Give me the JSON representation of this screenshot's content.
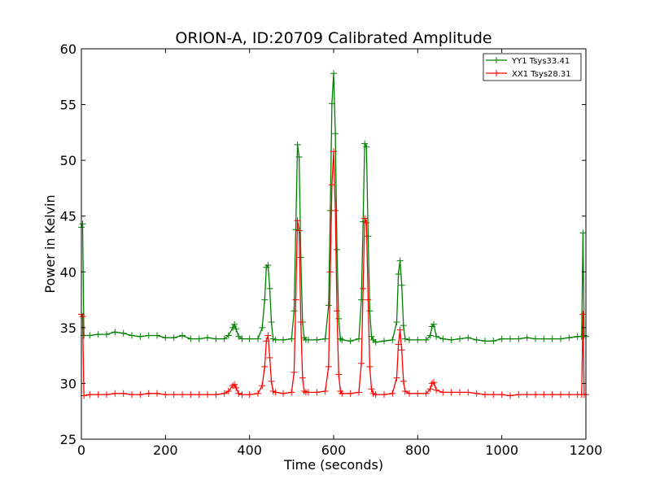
{
  "chart_data": {
    "type": "line",
    "title": "ORION-A, ID:20709 Calibrated Amplitude",
    "xlabel": "Time (seconds)",
    "ylabel": "Power in Kelvin",
    "xlim": [
      0,
      1200
    ],
    "ylim": [
      25,
      60
    ],
    "xticks": [
      0,
      200,
      400,
      600,
      800,
      1000,
      1200
    ],
    "yticks": [
      25,
      30,
      35,
      40,
      45,
      50,
      55,
      60
    ],
    "grid": false,
    "legend_position": "top-right",
    "marker": "plus",
    "series": [
      {
        "name": "YY1 Tsys33.41",
        "color": "#008000",
        "x": [
          0,
          3,
          6,
          20,
          40,
          60,
          80,
          100,
          120,
          140,
          160,
          180,
          200,
          220,
          240,
          260,
          280,
          300,
          320,
          340,
          350,
          360,
          364,
          368,
          374,
          382,
          400,
          420,
          430,
          436,
          440,
          444,
          448,
          452,
          456,
          462,
          480,
          500,
          506,
          510,
          514,
          518,
          522,
          526,
          530,
          534,
          540,
          560,
          580,
          588,
          592,
          596,
          600,
          604,
          608,
          612,
          616,
          620,
          640,
          660,
          666,
          670,
          674,
          678,
          682,
          686,
          690,
          694,
          700,
          720,
          740,
          750,
          754,
          758,
          762,
          766,
          770,
          780,
          800,
          820,
          830,
          834,
          838,
          844,
          860,
          880,
          900,
          920,
          940,
          960,
          980,
          1000,
          1020,
          1040,
          1060,
          1080,
          1100,
          1120,
          1140,
          1160,
          1180,
          1190,
          1193,
          1196,
          1200
        ],
        "y": [
          44.0,
          44.3,
          34.3,
          34.3,
          34.4,
          34.4,
          34.6,
          34.5,
          34.3,
          34.2,
          34.3,
          34.3,
          34.1,
          34.1,
          34.3,
          34.0,
          34.0,
          34.1,
          34.0,
          34.0,
          34.3,
          35.0,
          35.3,
          34.9,
          34.2,
          34.0,
          34.0,
          34.0,
          35.0,
          37.5,
          40.4,
          40.6,
          38.5,
          35.5,
          34.0,
          33.9,
          33.9,
          34.0,
          36.5,
          43.8,
          51.4,
          50.3,
          41.3,
          35.5,
          34.1,
          33.9,
          33.9,
          33.9,
          34.0,
          37.0,
          45.5,
          55.1,
          57.8,
          52.4,
          42.0,
          35.8,
          34.0,
          33.9,
          33.8,
          34.0,
          37.5,
          44.5,
          51.5,
          51.2,
          43.2,
          36.5,
          34.2,
          33.9,
          33.7,
          33.8,
          33.9,
          35.5,
          39.8,
          41.0,
          38.8,
          35.2,
          34.0,
          33.9,
          33.9,
          33.9,
          34.3,
          35.1,
          35.3,
          34.2,
          34.0,
          33.9,
          34.0,
          34.1,
          33.9,
          33.8,
          33.8,
          34.0,
          34.0,
          34.0,
          34.1,
          34.0,
          34.0,
          34.0,
          34.0,
          34.1,
          34.2,
          34.2,
          43.5,
          34.3,
          34.2
        ]
      },
      {
        "name": "XX1 Tsys28.31",
        "color": "#ff0000",
        "x": [
          0,
          3,
          6,
          20,
          40,
          60,
          80,
          100,
          120,
          140,
          160,
          180,
          200,
          220,
          240,
          260,
          280,
          300,
          320,
          340,
          350,
          360,
          364,
          368,
          374,
          382,
          400,
          420,
          430,
          436,
          440,
          444,
          448,
          452,
          456,
          462,
          480,
          500,
          506,
          510,
          514,
          518,
          522,
          526,
          530,
          534,
          540,
          560,
          580,
          588,
          592,
          596,
          600,
          604,
          608,
          612,
          616,
          620,
          640,
          660,
          666,
          670,
          674,
          678,
          682,
          686,
          690,
          694,
          700,
          720,
          740,
          750,
          754,
          758,
          762,
          766,
          770,
          780,
          800,
          820,
          830,
          834,
          838,
          844,
          860,
          880,
          900,
          920,
          940,
          960,
          980,
          1000,
          1020,
          1040,
          1060,
          1080,
          1100,
          1120,
          1140,
          1160,
          1180,
          1190,
          1193,
          1196,
          1200
        ],
        "y": [
          36.2,
          36.0,
          28.9,
          29.0,
          29.0,
          29.0,
          29.1,
          29.1,
          29.0,
          29.0,
          29.1,
          29.1,
          29.0,
          29.0,
          29.0,
          29.0,
          29.0,
          29.0,
          29.0,
          29.1,
          29.3,
          29.8,
          29.9,
          29.6,
          29.1,
          29.0,
          29.0,
          29.1,
          29.8,
          31.5,
          33.8,
          34.3,
          32.3,
          30.2,
          29.3,
          29.2,
          29.1,
          29.2,
          31.0,
          37.5,
          44.6,
          43.7,
          35.5,
          30.5,
          29.3,
          29.2,
          29.2,
          29.2,
          29.3,
          31.5,
          40.0,
          47.8,
          50.8,
          45.5,
          36.5,
          30.8,
          29.3,
          29.1,
          29.1,
          29.2,
          31.8,
          38.5,
          44.8,
          44.4,
          37.5,
          31.5,
          29.5,
          29.1,
          29.0,
          29.0,
          29.1,
          30.5,
          33.5,
          34.8,
          33.0,
          30.2,
          29.3,
          29.1,
          29.1,
          29.1,
          29.5,
          30.0,
          30.1,
          29.4,
          29.2,
          29.2,
          29.2,
          29.2,
          29.1,
          29.0,
          29.0,
          29.0,
          28.9,
          29.0,
          29.0,
          29.0,
          29.0,
          29.0,
          29.0,
          29.0,
          29.0,
          29.0,
          36.2,
          29.0,
          29.0
        ]
      }
    ]
  }
}
